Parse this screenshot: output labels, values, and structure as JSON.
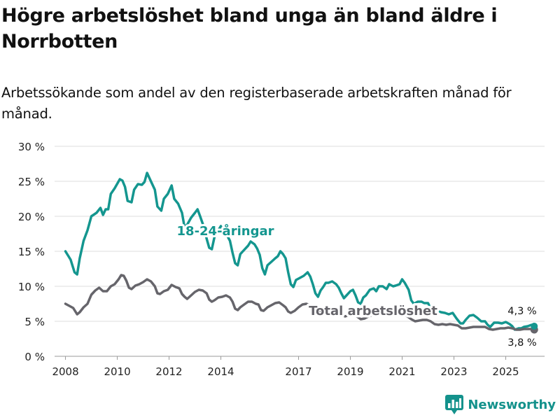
{
  "title": "Högre arbetslöshet bland unga än bland äldre i Norrbotten",
  "subtitle": "Arbetssökande som andel av den registerbaserade arbetskraften månad för månad.",
  "brand": {
    "name": "Newsworthy",
    "icon": "bar-chart-logo-icon",
    "color": "#14928c"
  },
  "chart_data": {
    "type": "line",
    "title": "Högre arbetslöshet bland unga än bland äldre i Norrbotten",
    "subtitle": "Arbetssökande som andel av den registerbaserade arbetskraften månad för månad.",
    "xlabel": "",
    "ylabel": "",
    "ylim": [
      0,
      30
    ],
    "xlim": [
      2007.58,
      2026.5
    ],
    "y_ticks": [
      0,
      5,
      10,
      15,
      20,
      25,
      30
    ],
    "y_tick_labels": [
      "0 %",
      "5 %",
      "10 %",
      "15 %",
      "20 %",
      "25 %",
      "30 %"
    ],
    "x_ticks": [
      2008,
      2010,
      2012,
      2014,
      2017,
      2019,
      2021,
      2023,
      2025
    ],
    "x_tick_labels": [
      "2008",
      "2010",
      "2012",
      "2014",
      "2017",
      "2019",
      "2021",
      "2023",
      "2025"
    ],
    "grid": true,
    "series": [
      {
        "name": "18-24-åringar",
        "label": "18-24-åringar",
        "color": "#14968f",
        "end_label": "4,3 %",
        "points": [
          [
            2008.0,
            15.0
          ],
          [
            2008.2,
            13.8
          ],
          [
            2008.35,
            12.0
          ],
          [
            2008.45,
            11.7
          ],
          [
            2008.55,
            14.0
          ],
          [
            2008.7,
            16.5
          ],
          [
            2008.85,
            18.0
          ],
          [
            2009.0,
            20.0
          ],
          [
            2009.2,
            20.5
          ],
          [
            2009.35,
            21.2
          ],
          [
            2009.45,
            20.2
          ],
          [
            2009.55,
            21.0
          ],
          [
            2009.65,
            21.0
          ],
          [
            2009.75,
            23.2
          ],
          [
            2009.9,
            24.0
          ],
          [
            2010.1,
            25.3
          ],
          [
            2010.2,
            25.1
          ],
          [
            2010.3,
            24.2
          ],
          [
            2010.4,
            22.2
          ],
          [
            2010.55,
            22.0
          ],
          [
            2010.65,
            23.8
          ],
          [
            2010.8,
            24.6
          ],
          [
            2010.95,
            24.5
          ],
          [
            2011.05,
            24.9
          ],
          [
            2011.15,
            26.2
          ],
          [
            2011.3,
            25.0
          ],
          [
            2011.45,
            23.8
          ],
          [
            2011.55,
            21.4
          ],
          [
            2011.7,
            20.8
          ],
          [
            2011.8,
            22.5
          ],
          [
            2011.95,
            23.2
          ],
          [
            2012.1,
            24.4
          ],
          [
            2012.2,
            22.5
          ],
          [
            2012.35,
            21.8
          ],
          [
            2012.5,
            20.5
          ],
          [
            2012.6,
            18.4
          ],
          [
            2012.7,
            18.8
          ],
          [
            2012.85,
            19.8
          ],
          [
            2013.0,
            20.5
          ],
          [
            2013.1,
            21.0
          ],
          [
            2013.2,
            20.0
          ],
          [
            2013.35,
            18.4
          ],
          [
            2013.45,
            16.8
          ],
          [
            2013.55,
            15.5
          ],
          [
            2013.65,
            15.3
          ],
          [
            2013.75,
            17.0
          ],
          [
            2013.9,
            18.0
          ],
          [
            2014.0,
            18.6
          ],
          [
            2014.1,
            17.5
          ],
          [
            2014.25,
            17.2
          ],
          [
            2014.35,
            16.5
          ],
          [
            2014.45,
            14.8
          ],
          [
            2014.55,
            13.3
          ],
          [
            2014.65,
            13.0
          ],
          [
            2014.75,
            14.6
          ],
          [
            2014.9,
            15.2
          ],
          [
            2015.05,
            15.8
          ],
          [
            2015.15,
            16.4
          ],
          [
            2015.3,
            16.0
          ],
          [
            2015.4,
            15.4
          ],
          [
            2015.5,
            14.5
          ],
          [
            2015.6,
            12.6
          ],
          [
            2015.7,
            11.7
          ],
          [
            2015.8,
            13.0
          ],
          [
            2015.95,
            13.5
          ],
          [
            2016.1,
            14.0
          ],
          [
            2016.2,
            14.3
          ],
          [
            2016.3,
            15.0
          ],
          [
            2016.4,
            14.6
          ],
          [
            2016.5,
            14.0
          ],
          [
            2016.6,
            12.0
          ],
          [
            2016.7,
            10.3
          ],
          [
            2016.8,
            9.9
          ],
          [
            2016.9,
            10.9
          ],
          [
            2017.05,
            11.2
          ],
          [
            2017.2,
            11.5
          ],
          [
            2017.35,
            12.0
          ],
          [
            2017.45,
            11.4
          ],
          [
            2017.55,
            10.3
          ],
          [
            2017.65,
            9.0
          ],
          [
            2017.75,
            8.5
          ],
          [
            2017.85,
            9.4
          ],
          [
            2017.95,
            9.9
          ],
          [
            2018.05,
            10.5
          ],
          [
            2018.15,
            10.5
          ],
          [
            2018.3,
            10.7
          ],
          [
            2018.45,
            10.3
          ],
          [
            2018.55,
            9.8
          ],
          [
            2018.65,
            9.0
          ],
          [
            2018.75,
            8.3
          ],
          [
            2018.85,
            8.7
          ],
          [
            2019.0,
            9.3
          ],
          [
            2019.1,
            9.5
          ],
          [
            2019.2,
            8.7
          ],
          [
            2019.3,
            7.7
          ],
          [
            2019.4,
            7.5
          ],
          [
            2019.5,
            8.4
          ],
          [
            2019.6,
            8.7
          ],
          [
            2019.75,
            9.5
          ],
          [
            2019.9,
            9.7
          ],
          [
            2020.0,
            9.3
          ],
          [
            2020.1,
            10.0
          ],
          [
            2020.25,
            10.0
          ],
          [
            2020.4,
            9.6
          ],
          [
            2020.5,
            10.3
          ],
          [
            2020.65,
            10.0
          ],
          [
            2020.75,
            10.1
          ],
          [
            2020.9,
            10.3
          ],
          [
            2021.0,
            11.0
          ],
          [
            2021.1,
            10.5
          ],
          [
            2021.25,
            9.5
          ],
          [
            2021.35,
            8.0
          ],
          [
            2021.45,
            7.5
          ],
          [
            2021.6,
            7.8
          ],
          [
            2021.75,
            7.8
          ],
          [
            2021.85,
            7.6
          ],
          [
            2022.0,
            7.6
          ],
          [
            2022.1,
            6.8
          ],
          [
            2022.2,
            6.5
          ],
          [
            2022.35,
            6.5
          ],
          [
            2022.5,
            6.3
          ],
          [
            2022.65,
            6.2
          ],
          [
            2022.8,
            6.0
          ],
          [
            2022.95,
            6.2
          ],
          [
            2023.1,
            5.4
          ],
          [
            2023.25,
            4.7
          ],
          [
            2023.35,
            4.7
          ],
          [
            2023.45,
            5.2
          ],
          [
            2023.6,
            5.8
          ],
          [
            2023.75,
            5.9
          ],
          [
            2023.9,
            5.5
          ],
          [
            2024.05,
            5.0
          ],
          [
            2024.2,
            5.0
          ],
          [
            2024.3,
            4.5
          ],
          [
            2024.4,
            4.2
          ],
          [
            2024.55,
            4.8
          ],
          [
            2024.7,
            4.8
          ],
          [
            2024.85,
            4.7
          ],
          [
            2025.0,
            4.9
          ],
          [
            2025.15,
            4.6
          ],
          [
            2025.25,
            4.3
          ],
          [
            2025.35,
            3.8
          ],
          [
            2025.5,
            4.0
          ],
          [
            2025.6,
            4.0
          ],
          [
            2025.7,
            4.2
          ],
          [
            2025.85,
            4.3
          ],
          [
            2026.0,
            4.5
          ],
          [
            2026.1,
            4.3
          ]
        ]
      },
      {
        "name": "Total arbetslöshet",
        "label": "Total arbetslöshet",
        "color": "#66656b",
        "end_label": "3,8 %",
        "points": [
          [
            2008.0,
            7.5
          ],
          [
            2008.15,
            7.2
          ],
          [
            2008.3,
            6.9
          ],
          [
            2008.45,
            6.0
          ],
          [
            2008.55,
            6.3
          ],
          [
            2008.7,
            7.0
          ],
          [
            2008.85,
            7.5
          ],
          [
            2009.0,
            8.8
          ],
          [
            2009.15,
            9.4
          ],
          [
            2009.3,
            9.8
          ],
          [
            2009.45,
            9.3
          ],
          [
            2009.6,
            9.3
          ],
          [
            2009.75,
            10.0
          ],
          [
            2009.9,
            10.3
          ],
          [
            2010.05,
            11.0
          ],
          [
            2010.15,
            11.6
          ],
          [
            2010.25,
            11.5
          ],
          [
            2010.35,
            10.8
          ],
          [
            2010.45,
            9.8
          ],
          [
            2010.55,
            9.6
          ],
          [
            2010.7,
            10.1
          ],
          [
            2010.85,
            10.3
          ],
          [
            2011.0,
            10.6
          ],
          [
            2011.15,
            11.0
          ],
          [
            2011.3,
            10.7
          ],
          [
            2011.45,
            10.0
          ],
          [
            2011.55,
            9.0
          ],
          [
            2011.65,
            8.9
          ],
          [
            2011.8,
            9.3
          ],
          [
            2011.95,
            9.5
          ],
          [
            2012.1,
            10.2
          ],
          [
            2012.25,
            9.9
          ],
          [
            2012.4,
            9.7
          ],
          [
            2012.5,
            8.9
          ],
          [
            2012.6,
            8.5
          ],
          [
            2012.7,
            8.2
          ],
          [
            2012.85,
            8.7
          ],
          [
            2013.0,
            9.2
          ],
          [
            2013.15,
            9.5
          ],
          [
            2013.3,
            9.4
          ],
          [
            2013.45,
            9.0
          ],
          [
            2013.55,
            8.1
          ],
          [
            2013.65,
            7.8
          ],
          [
            2013.75,
            8.0
          ],
          [
            2013.9,
            8.4
          ],
          [
            2014.05,
            8.5
          ],
          [
            2014.2,
            8.7
          ],
          [
            2014.35,
            8.4
          ],
          [
            2014.45,
            7.8
          ],
          [
            2014.55,
            6.8
          ],
          [
            2014.65,
            6.6
          ],
          [
            2014.75,
            7.0
          ],
          [
            2014.9,
            7.4
          ],
          [
            2015.05,
            7.8
          ],
          [
            2015.2,
            7.8
          ],
          [
            2015.35,
            7.5
          ],
          [
            2015.45,
            7.4
          ],
          [
            2015.55,
            6.6
          ],
          [
            2015.65,
            6.5
          ],
          [
            2015.8,
            7.0
          ],
          [
            2015.95,
            7.3
          ],
          [
            2016.1,
            7.6
          ],
          [
            2016.25,
            7.7
          ],
          [
            2016.4,
            7.3
          ],
          [
            2016.5,
            7.0
          ],
          [
            2016.6,
            6.4
          ],
          [
            2016.7,
            6.2
          ],
          [
            2016.85,
            6.5
          ],
          [
            2017.0,
            7.0
          ],
          [
            2017.15,
            7.4
          ],
          [
            2017.3,
            7.5
          ],
          [
            2017.45,
            7.3
          ],
          [
            2017.6,
            6.9
          ],
          [
            2017.75,
            6.5
          ],
          [
            2017.9,
            6.4
          ],
          [
            2018.05,
            6.6
          ],
          [
            2018.2,
            6.8
          ],
          [
            2018.35,
            6.7
          ],
          [
            2018.5,
            6.3
          ],
          [
            2018.65,
            5.9
          ],
          [
            2018.8,
            5.7
          ],
          [
            2018.95,
            5.9
          ],
          [
            2019.1,
            6.0
          ],
          [
            2019.25,
            5.7
          ],
          [
            2019.4,
            5.3
          ],
          [
            2019.55,
            5.4
          ],
          [
            2019.7,
            5.7
          ],
          [
            2019.85,
            5.9
          ],
          [
            2020.0,
            5.8
          ],
          [
            2020.15,
            6.2
          ],
          [
            2020.3,
            6.3
          ],
          [
            2020.45,
            6.2
          ],
          [
            2020.6,
            6.1
          ],
          [
            2020.75,
            6.0
          ],
          [
            2020.9,
            5.9
          ],
          [
            2021.05,
            6.0
          ],
          [
            2021.2,
            5.7
          ],
          [
            2021.35,
            5.3
          ],
          [
            2021.5,
            5.0
          ],
          [
            2021.65,
            5.1
          ],
          [
            2021.8,
            5.2
          ],
          [
            2021.95,
            5.2
          ],
          [
            2022.1,
            5.0
          ],
          [
            2022.25,
            4.6
          ],
          [
            2022.4,
            4.5
          ],
          [
            2022.55,
            4.6
          ],
          [
            2022.7,
            4.5
          ],
          [
            2022.85,
            4.6
          ],
          [
            2023.0,
            4.5
          ],
          [
            2023.15,
            4.4
          ],
          [
            2023.3,
            4.0
          ],
          [
            2023.45,
            4.0
          ],
          [
            2023.6,
            4.1
          ],
          [
            2023.75,
            4.2
          ],
          [
            2023.9,
            4.2
          ],
          [
            2024.05,
            4.2
          ],
          [
            2024.2,
            4.2
          ],
          [
            2024.35,
            3.9
          ],
          [
            2024.5,
            3.8
          ],
          [
            2024.65,
            3.9
          ],
          [
            2024.8,
            4.0
          ],
          [
            2024.95,
            4.0
          ],
          [
            2025.1,
            4.1
          ],
          [
            2025.25,
            4.0
          ],
          [
            2025.4,
            3.8
          ],
          [
            2025.55,
            3.8
          ],
          [
            2025.7,
            3.9
          ],
          [
            2025.85,
            3.9
          ],
          [
            2026.0,
            3.9
          ],
          [
            2026.1,
            3.8
          ]
        ]
      }
    ]
  }
}
